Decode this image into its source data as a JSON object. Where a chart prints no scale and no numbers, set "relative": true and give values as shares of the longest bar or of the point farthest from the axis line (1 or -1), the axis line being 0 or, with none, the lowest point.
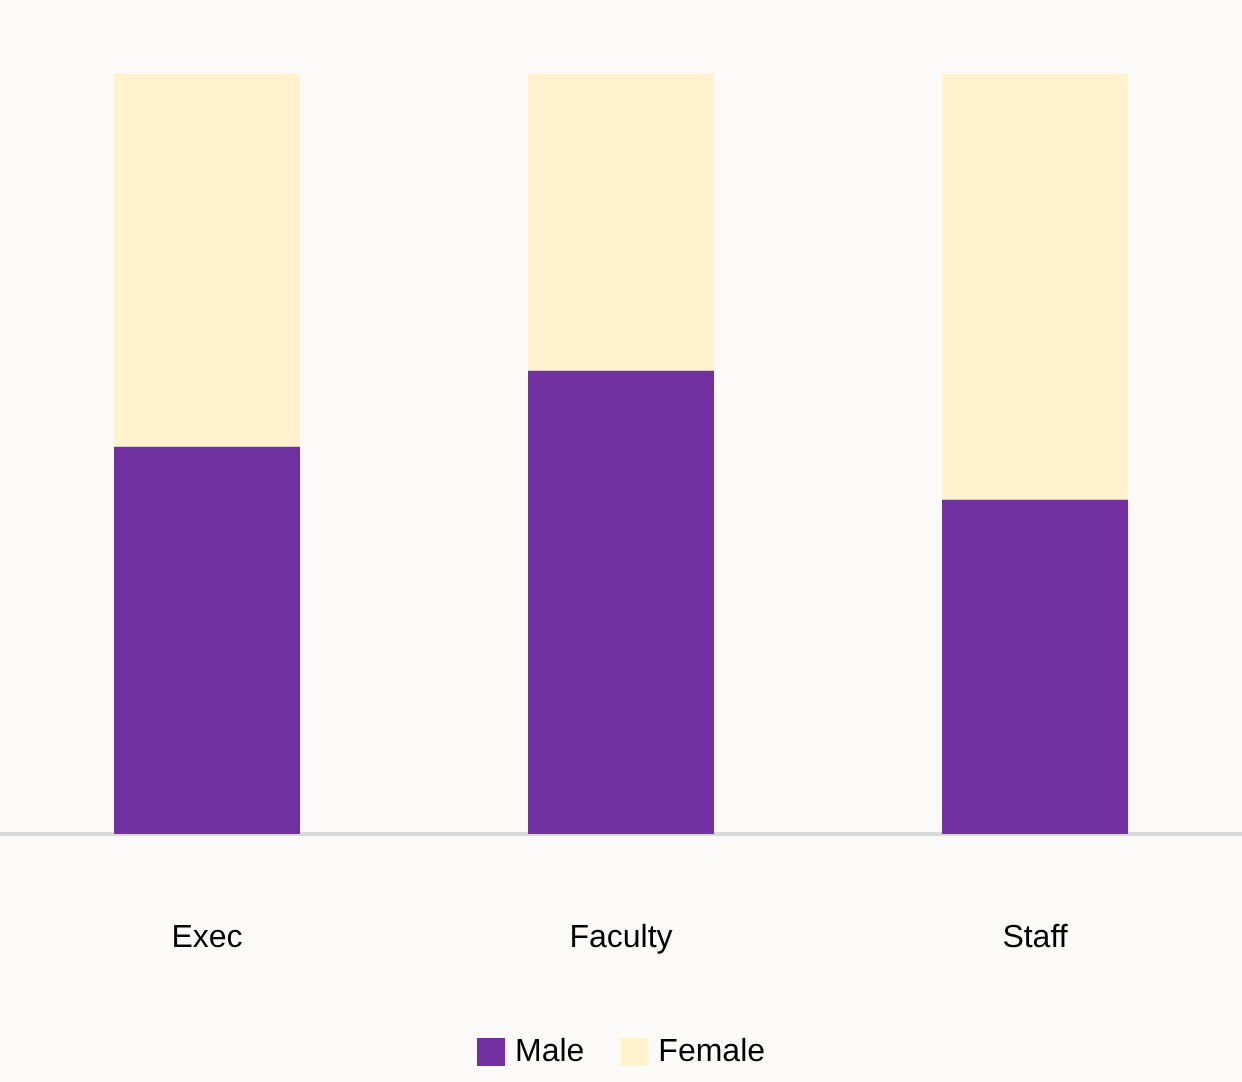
{
  "chart_data": {
    "type": "bar",
    "stacked": true,
    "relative": true,
    "categories": [
      "Exec",
      "Faculty",
      "Staff"
    ],
    "series": [
      {
        "name": "Male",
        "color": "#7030a0",
        "values": [
          0.51,
          0.61,
          0.44
        ]
      },
      {
        "name": "Female",
        "color": "#fff2cc",
        "values": [
          0.49,
          0.39,
          0.56
        ]
      }
    ],
    "legend": "bottom"
  }
}
